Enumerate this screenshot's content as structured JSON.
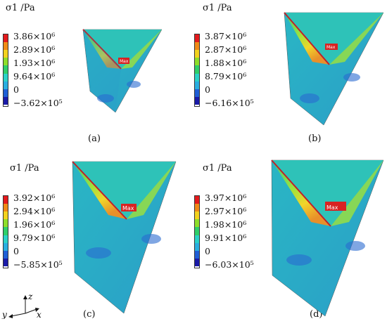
{
  "panels": [
    {
      "id": "a",
      "caption": "(a)",
      "title": "σ1 /Pa",
      "legend": [
        "3.86×10⁶",
        "2.89×10⁶",
        "1.93×10⁶",
        "9.64×10⁶",
        "0",
        "−3.62×10⁵"
      ],
      "max_label": "Max"
    },
    {
      "id": "b",
      "caption": "(b)",
      "title": "σ1 /Pa",
      "legend": [
        "3.87×10⁶",
        "2.87×10⁶",
        "1.88×10⁶",
        "8.79×10⁶",
        "0",
        "−6.16×10⁵"
      ],
      "max_label": "Max"
    },
    {
      "id": "c",
      "caption": "(c)",
      "title": "σ1 /Pa",
      "legend": [
        "3.92×10⁶",
        "2.94×10⁶",
        "1.96×10⁶",
        "9.79×10⁶",
        "0",
        "−5.85×10⁵"
      ],
      "max_label": "Max"
    },
    {
      "id": "d",
      "caption": "(d)",
      "title": "σ1 /Pa",
      "legend": [
        "3.97×10⁶",
        "2.97×10⁶",
        "1.98×10⁶",
        "9.91×10⁶",
        "0",
        "−6.03×10⁵"
      ],
      "max_label": "Max"
    }
  ],
  "legend_colors": [
    "#e41a1c",
    "#f08a16",
    "#f3d21e",
    "#8ede2a",
    "#2fcf6a",
    "#2ad2c8",
    "#29aee0",
    "#1f5fd6",
    "#1a1aa8"
  ],
  "axes": {
    "z": "z",
    "y": "y",
    "x": "x"
  }
}
